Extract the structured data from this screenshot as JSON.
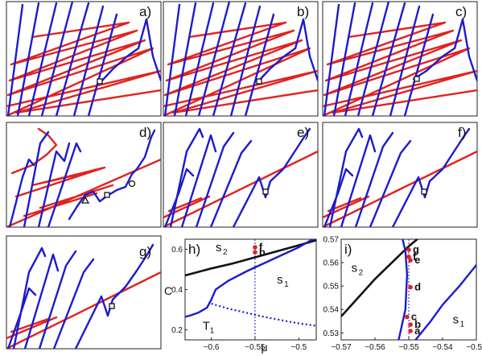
{
  "panel_labels": [
    "a)",
    "b)",
    "c)",
    "d)",
    "e)",
    "f)",
    "g)",
    "h)",
    "i)"
  ],
  "colors": {
    "branch_red": "#e0231f",
    "branch_blue": "#1c1ccc",
    "boundary_black": "#111111",
    "marker": "#111111"
  },
  "chart_data": [
    {
      "panel": "h",
      "type": "line",
      "xlabel": "μ",
      "ylabel": "C",
      "xlim": [
        -0.63,
        -0.48
      ],
      "ylim": [
        0.15,
        0.65
      ],
      "xticks": [
        -0.6,
        -0.55,
        -0.5
      ],
      "xtick_labels": [
        "−0.6",
        "−0.55",
        "−0.5"
      ],
      "yticks": [
        0.2,
        0.4,
        0.6
      ],
      "ytick_labels": [
        "0.2",
        "0.4",
        "0.6"
      ],
      "region_labels": [
        {
          "name": "s",
          "sub": "2",
          "x": -0.595,
          "y": 0.59
        },
        {
          "name": "s",
          "sub": "1",
          "x": -0.525,
          "y": 0.43
        },
        {
          "name": "T",
          "sub": "1",
          "x": -0.61,
          "y": 0.2
        }
      ],
      "series": [
        {
          "style": "black-solid",
          "x": [
            -0.63,
            -0.6,
            -0.575,
            -0.55,
            -0.525,
            -0.5,
            -0.48
          ],
          "y": [
            0.47,
            0.505,
            0.53,
            0.56,
            0.59,
            0.62,
            0.645
          ]
        },
        {
          "style": "blue-solid",
          "x": [
            -0.48,
            -0.5,
            -0.52,
            -0.54,
            -0.56,
            -0.58,
            -0.595,
            -0.6,
            -0.605,
            -0.615,
            -0.625,
            -0.63
          ],
          "y": [
            0.66,
            0.61,
            0.57,
            0.53,
            0.49,
            0.445,
            0.4,
            0.35,
            0.31,
            0.285,
            0.27,
            0.265
          ]
        },
        {
          "style": "blue-dotted",
          "x": [
            -0.6,
            -0.58,
            -0.56,
            -0.54,
            -0.52,
            -0.5,
            -0.48
          ],
          "y": [
            0.33,
            0.305,
            0.285,
            0.265,
            0.248,
            0.232,
            0.22
          ]
        }
      ],
      "marker_line_x": -0.55,
      "points": [
        {
          "label": "f",
          "x": -0.55,
          "y": 0.61
        },
        {
          "label": "b",
          "x": -0.55,
          "y": 0.585
        }
      ]
    },
    {
      "panel": "i",
      "type": "line",
      "xlabel": "",
      "ylabel": "",
      "xlim": [
        -0.57,
        -0.53
      ],
      "ylim": [
        0.527,
        0.57
      ],
      "xticks": [
        -0.57,
        -0.56,
        -0.55,
        -0.54,
        -0.53
      ],
      "xtick_labels": [
        "−0.57",
        "−0.56",
        "−0.55",
        "−0.54",
        "−0.53"
      ],
      "yticks": [
        0.53,
        0.54,
        0.55,
        0.56,
        0.57
      ],
      "ytick_labels": [
        "0.53",
        "0.54",
        "0.55",
        "0.56",
        "0.57"
      ],
      "region_labels": [
        {
          "name": "s",
          "sub": "2",
          "x": -0.567,
          "y": 0.556
        },
        {
          "name": "s",
          "sub": "1",
          "x": -0.537,
          "y": 0.534
        }
      ],
      "series": [
        {
          "style": "black-solid",
          "x": [
            -0.57,
            -0.56,
            -0.55,
            -0.545
          ],
          "y": [
            0.537,
            0.553,
            0.567,
            0.573
          ]
        },
        {
          "style": "blue-solid",
          "x": [
            -0.553,
            -0.551,
            -0.5505,
            -0.551,
            -0.552
          ],
          "y": [
            0.527,
            0.54,
            0.555,
            0.565,
            0.571
          ]
        },
        {
          "style": "blue-solid",
          "x": [
            -0.548,
            -0.5435,
            -0.54,
            -0.535,
            -0.53
          ],
          "y": [
            0.527,
            0.535,
            0.542,
            0.55,
            0.559
          ]
        }
      ],
      "marker_line_x": -0.55,
      "points": [
        {
          "label": "g",
          "x": -0.55,
          "y": 0.5655
        },
        {
          "label": "f",
          "x": -0.55,
          "y": 0.5625
        },
        {
          "label": "e",
          "x": -0.5495,
          "y": 0.561
        },
        {
          "label": "d",
          "x": -0.5495,
          "y": 0.5495
        },
        {
          "label": "c",
          "x": -0.5505,
          "y": 0.5368
        },
        {
          "label": "b",
          "x": -0.5495,
          "y": 0.5335
        },
        {
          "label": "a",
          "x": -0.5495,
          "y": 0.5308
        }
      ]
    }
  ]
}
